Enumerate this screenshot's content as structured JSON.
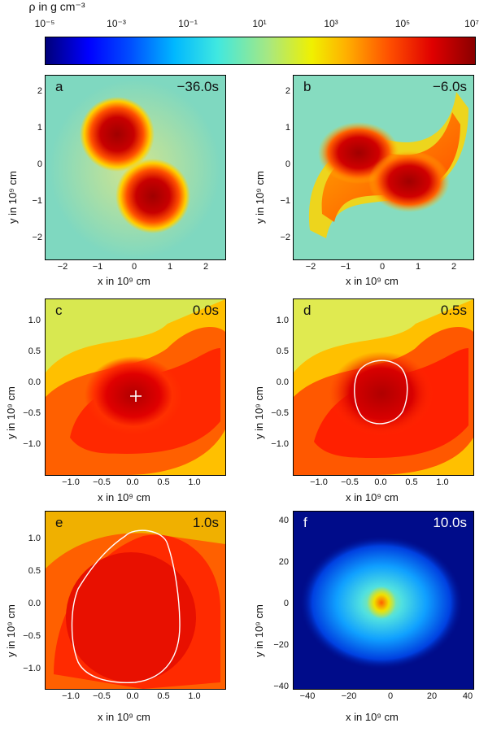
{
  "colorbar": {
    "title": "ρ in g cm⁻³",
    "ticks": [
      "10⁻⁵",
      "10⁻³",
      "10⁻¹",
      "10¹",
      "10³",
      "10⁵",
      "10⁷"
    ]
  },
  "panels": [
    {
      "letter": "a",
      "time": "−36.0s",
      "ylabel": "y in 10⁹ cm",
      "xlabel": "x in 10⁹ cm",
      "yticks": [
        "2",
        "1",
        "0",
        "−1",
        "−2"
      ],
      "xticks": [
        "−2",
        "−1",
        "0",
        "1",
        "2"
      ]
    },
    {
      "letter": "b",
      "time": "−6.0s",
      "ylabel": "y in 10⁹ cm",
      "xlabel": "x in 10⁹ cm",
      "yticks": [
        "2",
        "1",
        "0",
        "−1",
        "−2"
      ],
      "xticks": [
        "−2",
        "−1",
        "0",
        "1",
        "2"
      ]
    },
    {
      "letter": "c",
      "time": "0.0s",
      "ylabel": "y in 10⁹ cm",
      "xlabel": "x in 10⁹ cm",
      "yticks": [
        "1.0",
        "0.5",
        "0.0",
        "−0.5",
        "−1.0"
      ],
      "xticks": [
        "−1.0",
        "−0.5",
        "0.0",
        "0.5",
        "1.0"
      ]
    },
    {
      "letter": "d",
      "time": "0.5s",
      "ylabel": "y in 10⁹ cm",
      "xlabel": "x in 10⁹ cm",
      "yticks": [
        "1.0",
        "0.5",
        "0.0",
        "−0.5",
        "−1.0"
      ],
      "xticks": [
        "−1.0",
        "−0.5",
        "0.0",
        "0.5",
        "1.0"
      ]
    },
    {
      "letter": "e",
      "time": "1.0s",
      "ylabel": "y in 10⁹ cm",
      "xlabel": "x in 10⁹ cm",
      "yticks": [
        "1.0",
        "0.5",
        "0.0",
        "−0.5",
        "−1.0"
      ],
      "xticks": [
        "−1.0",
        "−0.5",
        "0.0",
        "0.5",
        "1.0"
      ]
    },
    {
      "letter": "f",
      "time": "10.0s",
      "ylabel": "y in 10⁹ cm",
      "xlabel": "x in 10⁹ cm",
      "yticks": [
        "40",
        "20",
        "0",
        "−20",
        "−40"
      ],
      "xticks": [
        "−40",
        "−20",
        "0",
        "20",
        "40"
      ]
    }
  ]
}
